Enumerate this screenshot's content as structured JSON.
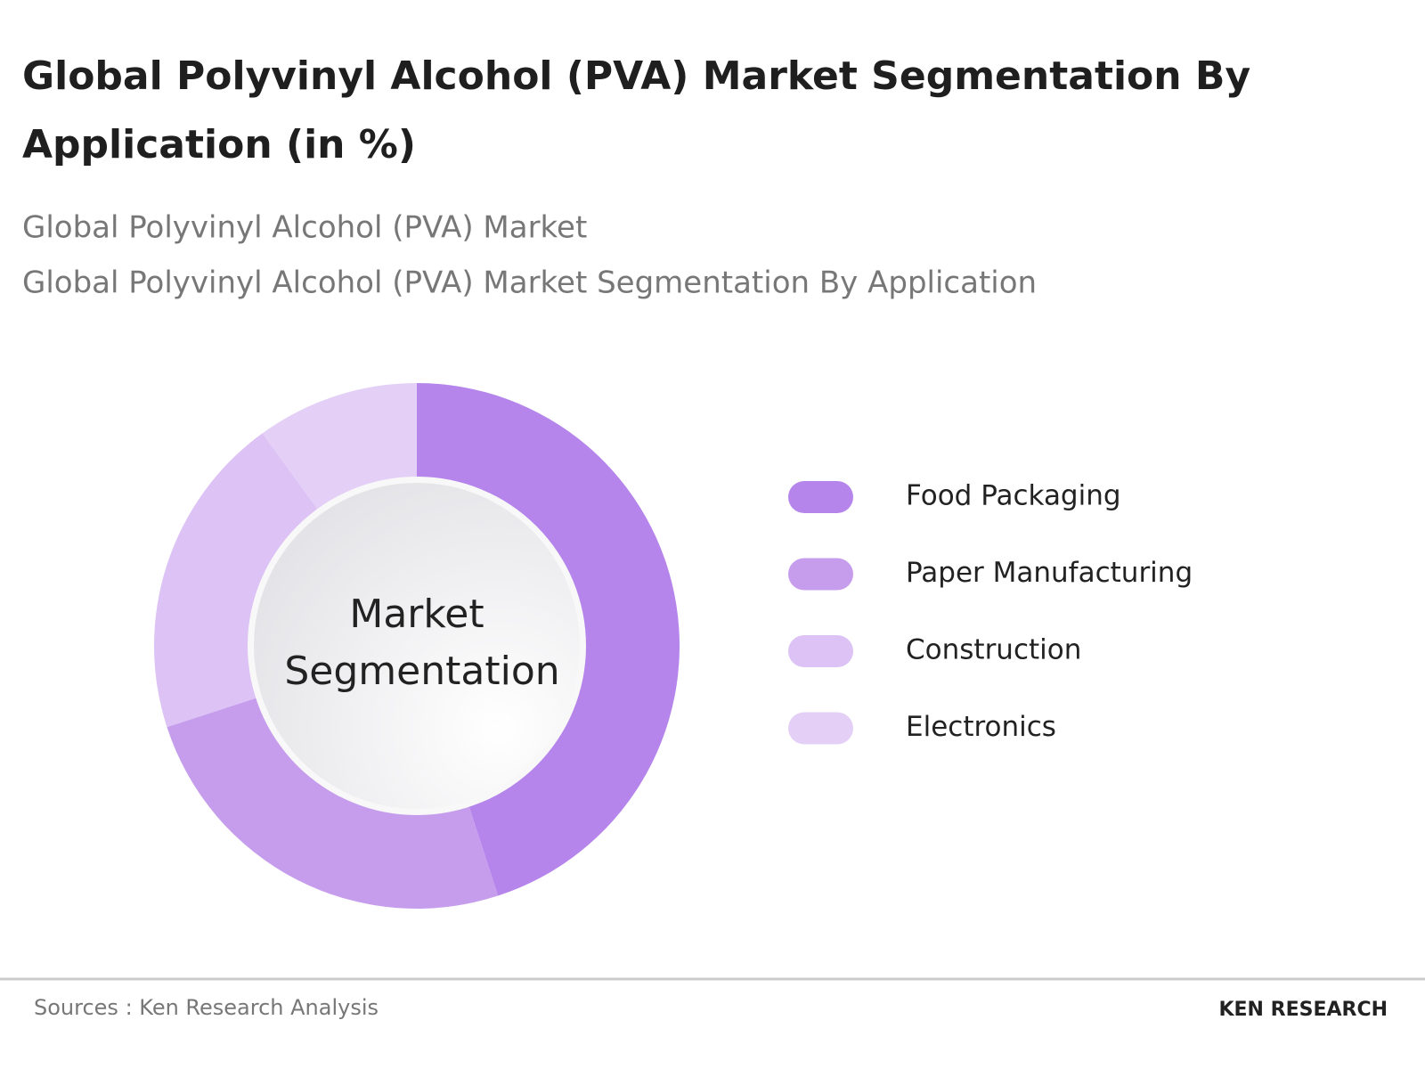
{
  "chart_data": {
    "type": "donut",
    "title": "Global Polyvinyl Alcohol (PVA) Market Segmentation By Application (in %)",
    "subtitles": [
      "Global Polyvinyl Alcohol (PVA) Market",
      "Global Polyvinyl Alcohol (PVA) Market Segmentation By Application"
    ],
    "center_label": [
      "Market",
      "Segmentation"
    ],
    "categories": [
      "Food Packaging",
      "Paper Manufacturing",
      "Construction",
      "Electronics"
    ],
    "values": [
      45,
      25,
      20,
      10
    ],
    "colors": [
      "#b585ec",
      "#c69ded",
      "#dcc2f5",
      "#e4d0f7"
    ]
  },
  "footer": {
    "source": "Sources : Ken Research Analysis",
    "logo": "KEN RESEARCH"
  }
}
